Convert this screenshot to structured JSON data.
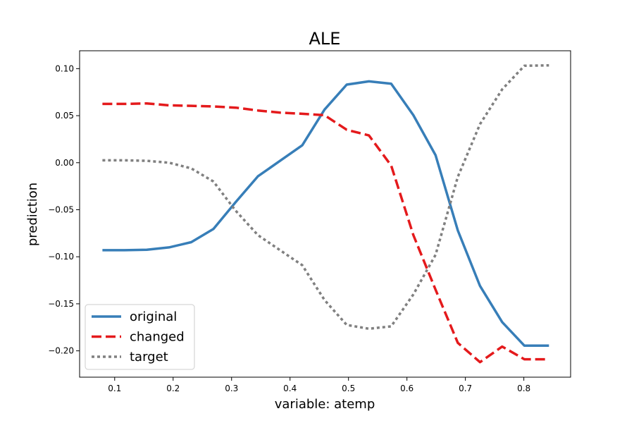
{
  "chart_data": {
    "type": "line",
    "title": "ALE",
    "xlabel": "variable: atemp",
    "ylabel": "prediction",
    "xlim": [
      0.04,
      0.88
    ],
    "ylim": [
      -0.228,
      0.119
    ],
    "xticks": [
      0.1,
      0.2,
      0.3,
      0.4,
      0.5,
      0.6,
      0.7,
      0.8
    ],
    "xtick_labels": [
      "0.1",
      "0.2",
      "0.3",
      "0.4",
      "0.5",
      "0.6",
      "0.7",
      "0.8"
    ],
    "yticks": [
      0.1,
      0.05,
      0.0,
      -0.05,
      -0.1,
      -0.15,
      -0.2
    ],
    "ytick_labels": [
      "0.10",
      "0.05",
      "0.00",
      "−0.05",
      "−0.10",
      "−0.15",
      "−0.20"
    ],
    "grid": false,
    "legend_position": "bottom-left",
    "series": [
      {
        "name": "original",
        "color": "#377eb8",
        "style": "solid",
        "x": [
          0.079,
          0.117,
          0.155,
          0.193,
          0.231,
          0.269,
          0.307,
          0.345,
          0.383,
          0.421,
          0.459,
          0.497,
          0.535,
          0.573,
          0.611,
          0.649,
          0.687,
          0.725,
          0.763,
          0.801,
          0.843
        ],
        "y": [
          -0.093,
          -0.093,
          -0.0925,
          -0.09,
          -0.0845,
          -0.0705,
          -0.042,
          -0.0145,
          0.002,
          0.0185,
          0.0565,
          0.083,
          0.0865,
          0.084,
          0.0505,
          0.008,
          -0.072,
          -0.131,
          -0.1695,
          -0.1945,
          -0.1945
        ]
      },
      {
        "name": "changed",
        "color": "#e41a1c",
        "style": "dashed",
        "x": [
          0.079,
          0.117,
          0.155,
          0.193,
          0.231,
          0.269,
          0.307,
          0.345,
          0.383,
          0.421,
          0.459,
          0.497,
          0.535,
          0.573,
          0.611,
          0.649,
          0.687,
          0.725,
          0.763,
          0.801,
          0.843
        ],
        "y": [
          0.0625,
          0.0625,
          0.063,
          0.061,
          0.0605,
          0.0598,
          0.0585,
          0.0555,
          0.0532,
          0.052,
          0.0505,
          0.035,
          0.029,
          -0.003,
          -0.077,
          -0.135,
          -0.1915,
          -0.212,
          -0.1955,
          -0.209,
          -0.209
        ]
      },
      {
        "name": "target",
        "color": "#808080",
        "style": "dotted",
        "x": [
          0.079,
          0.117,
          0.155,
          0.193,
          0.231,
          0.269,
          0.307,
          0.345,
          0.383,
          0.421,
          0.459,
          0.497,
          0.535,
          0.573,
          0.611,
          0.649,
          0.687,
          0.725,
          0.763,
          0.801,
          0.843
        ],
        "y": [
          0.0025,
          0.0025,
          0.002,
          0.0,
          -0.006,
          -0.02,
          -0.051,
          -0.077,
          -0.093,
          -0.109,
          -0.146,
          -0.1725,
          -0.1765,
          -0.174,
          -0.14,
          -0.098,
          -0.015,
          0.041,
          0.078,
          0.103,
          0.1035
        ]
      }
    ]
  }
}
